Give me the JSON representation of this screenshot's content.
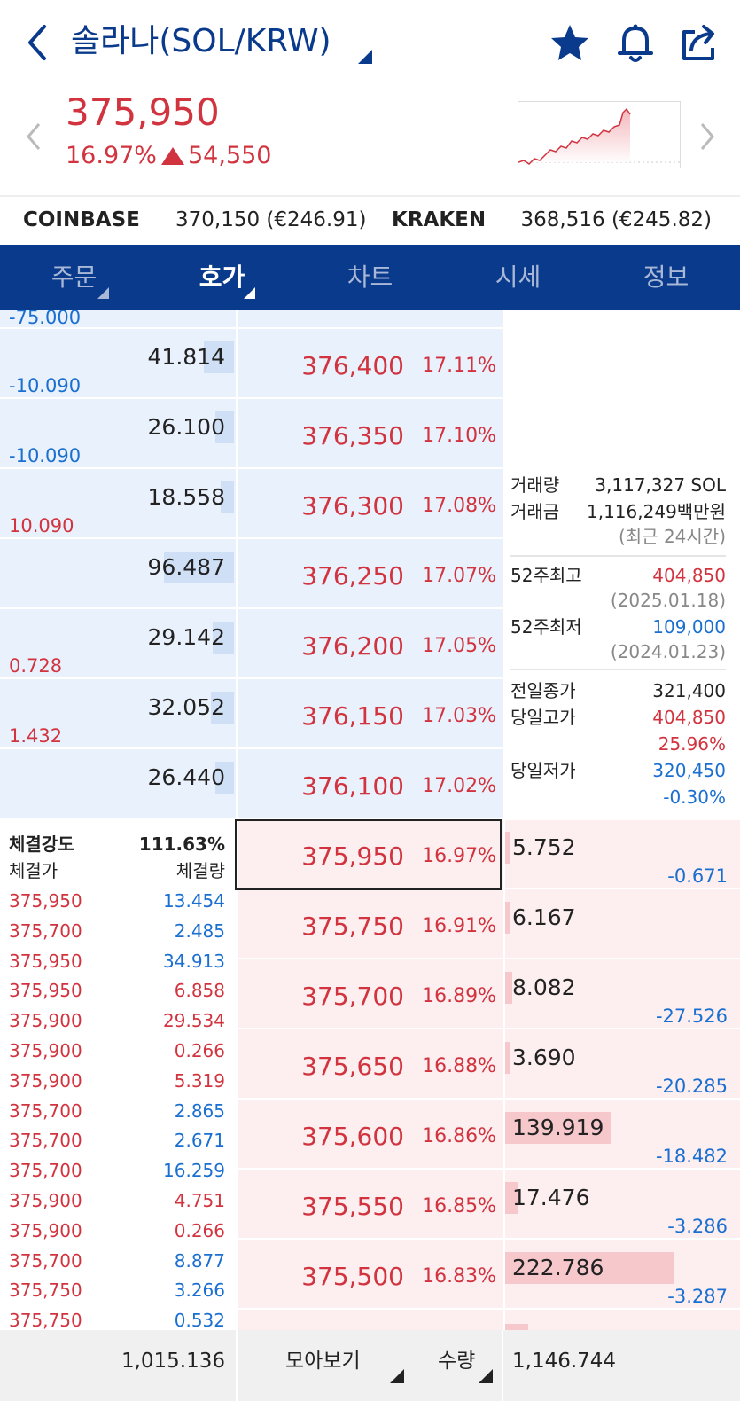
{
  "header": {
    "title": "솔라나(SOL/KRW)",
    "icons": [
      "back-icon",
      "star-icon",
      "bell-icon",
      "share-icon"
    ]
  },
  "price": {
    "current": "375,950",
    "change_pct": "16.97%",
    "change_abs": "54,550"
  },
  "exchanges": [
    {
      "name": "COINBASE",
      "value": "370,150 (€246.91)"
    },
    {
      "name": "KRAKEN",
      "value": "368,516 (€245.82)"
    }
  ],
  "tabs": [
    "주문",
    "호가",
    "차트",
    "시세",
    "정보"
  ],
  "asks": [
    {
      "sub": "-75.000",
      "qty": "",
      "price": "",
      "pct": ""
    },
    {
      "sub": "-10.090",
      "qty": "41.814",
      "price": "376,400",
      "pct": "17.11%",
      "fill": 0.37
    },
    {
      "sub": "-10.090",
      "qty": "26.100",
      "price": "376,350",
      "pct": "17.10%",
      "fill": 0.23
    },
    {
      "sub": "10.090",
      "qty": "18.558",
      "price": "376,300",
      "pct": "17.08%",
      "fill": 0.16
    },
    {
      "sub": "",
      "qty": "96.487",
      "price": "376,250",
      "pct": "17.07%",
      "fill": 0.86
    },
    {
      "sub": "0.728",
      "qty": "29.142",
      "price": "376,200",
      "pct": "17.05%",
      "fill": 0.26
    },
    {
      "sub": "1.432",
      "qty": "32.052",
      "price": "376,150",
      "pct": "17.03%",
      "fill": 0.28
    },
    {
      "sub": "",
      "qty": "26.440",
      "price": "376,100",
      "pct": "17.02%",
      "fill": 0.23
    }
  ],
  "bids": [
    {
      "price": "375,950",
      "pct": "16.97%",
      "qty": "5.752",
      "sub": "-0.671",
      "fill": 0.03
    },
    {
      "price": "375,750",
      "pct": "16.91%",
      "qty": "6.167",
      "sub": "",
      "fill": 0.03
    },
    {
      "price": "375,700",
      "pct": "16.89%",
      "qty": "8.082",
      "sub": "-27.526",
      "fill": 0.04
    },
    {
      "price": "375,650",
      "pct": "16.88%",
      "qty": "3.690",
      "sub": "-20.285",
      "fill": 0.02
    },
    {
      "price": "375,600",
      "pct": "16.86%",
      "qty": "139.919",
      "sub": "-18.482",
      "fill": 0.63
    },
    {
      "price": "375,550",
      "pct": "16.85%",
      "qty": "17.476",
      "sub": "-3.286",
      "fill": 0.08
    },
    {
      "price": "375,500",
      "pct": "16.83%",
      "qty": "222.786",
      "sub": "-3.287",
      "fill": 1.0
    }
  ],
  "info": {
    "volume_label": "거래량",
    "volume": "3,117,327 SOL",
    "amount_label": "거래금",
    "amount": "1,116,249백만원",
    "recent": "(최근 24시간)",
    "high52_label": "52주최고",
    "high52": "404,850",
    "high52_date": "(2025.01.18)",
    "low52_label": "52주최저",
    "low52": "109,000",
    "low52_date": "(2024.01.23)",
    "prev_close_label": "전일종가",
    "prev_close": "321,400",
    "day_high_label": "당일고가",
    "day_high": "404,850",
    "day_high_pct": "25.96%",
    "day_low_label": "당일저가",
    "day_low": "320,450",
    "day_low_pct": "-0.30%"
  },
  "trades": {
    "strength_label": "체결강도",
    "strength": "111.63%",
    "price_header": "체결가",
    "qty_header": "체결량",
    "rows": [
      {
        "p": "375,950",
        "q": "13.454",
        "side": "buy"
      },
      {
        "p": "375,700",
        "q": "2.485",
        "side": "buy"
      },
      {
        "p": "375,950",
        "q": "34.913",
        "side": "buy"
      },
      {
        "p": "375,950",
        "q": "6.858",
        "side": "sell"
      },
      {
        "p": "375,900",
        "q": "29.534",
        "side": "sell"
      },
      {
        "p": "375,900",
        "q": "0.266",
        "side": "sell"
      },
      {
        "p": "375,900",
        "q": "5.319",
        "side": "sell"
      },
      {
        "p": "375,700",
        "q": "2.865",
        "side": "buy"
      },
      {
        "p": "375,700",
        "q": "2.671",
        "side": "buy"
      },
      {
        "p": "375,700",
        "q": "16.259",
        "side": "buy"
      },
      {
        "p": "375,900",
        "q": "4.751",
        "side": "sell"
      },
      {
        "p": "375,900",
        "q": "0.266",
        "side": "sell"
      },
      {
        "p": "375,700",
        "q": "8.877",
        "side": "buy"
      },
      {
        "p": "375,750",
        "q": "3.266",
        "side": "buy"
      },
      {
        "p": "375,750",
        "q": "0.532",
        "side": "buy"
      }
    ]
  },
  "footer": {
    "ask_total": "1,015.136",
    "view_label": "모아보기",
    "qty_label": "수량",
    "bid_total": "1,146.744"
  },
  "colors": {
    "navy": "#0a3a8c",
    "red": "#d1343f",
    "blue": "#1a6fd0"
  }
}
